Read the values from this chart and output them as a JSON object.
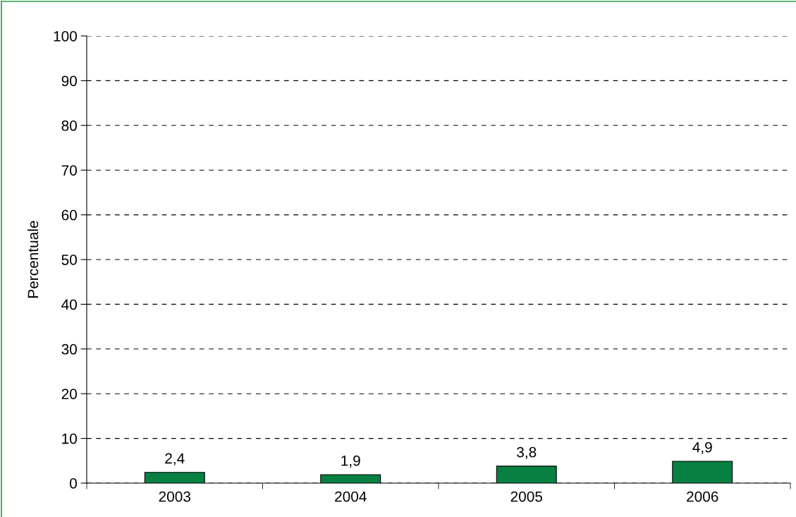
{
  "chart_data": {
    "type": "bar",
    "ylabel": "Percentuale",
    "categories": [
      "2003",
      "2004",
      "2005",
      "2006"
    ],
    "values": [
      2.4,
      1.9,
      3.8,
      4.9
    ],
    "color": "#078042",
    "value_labels": [
      "2,4",
      "1,9",
      "3,8",
      "4,9"
    ],
    "ylim": [
      0,
      100
    ],
    "yticks": [
      0,
      10,
      20,
      30,
      40,
      50,
      60,
      70,
      80,
      90,
      100
    ],
    "grid": "y",
    "line_style": "dashed",
    "legend": false
  }
}
